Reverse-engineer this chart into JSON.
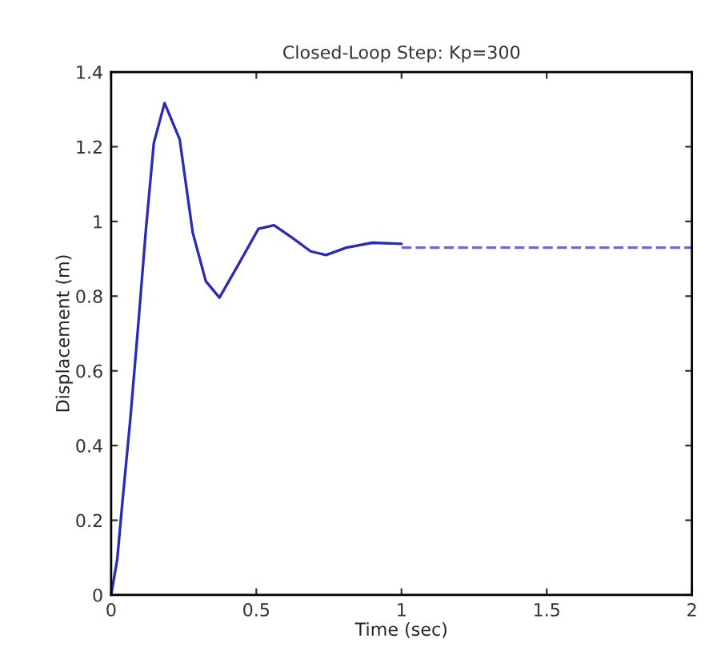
{
  "chart_data": {
    "type": "line",
    "title": "Closed-Loop Step: Kp=300",
    "xlabel": "Time (sec)",
    "ylabel": "Displacement (m)",
    "xlim": [
      0,
      2
    ],
    "xticks": [
      0,
      0.5,
      1,
      1.5,
      2
    ],
    "ylim": [
      0,
      1.4
    ],
    "yticks": [
      0,
      0.2,
      0.4,
      0.6,
      0.8,
      1,
      1.2,
      1.4
    ],
    "grid": false,
    "series": [
      {
        "color": "#2b2bb5",
        "line_style": "solid",
        "x": [
          0,
          0.021,
          0.039,
          0.066,
          0.093,
          0.12,
          0.147,
          0.184,
          0.236,
          0.281,
          0.326,
          0.373,
          0.435,
          0.507,
          0.561,
          0.624,
          0.687,
          0.74,
          0.81,
          0.9,
          1.0
        ],
        "values": [
          0,
          0.095,
          0.25,
          0.47,
          0.72,
          0.98,
          1.21,
          1.317,
          1.22,
          0.97,
          0.84,
          0.796,
          0.88,
          0.98,
          0.99,
          0.956,
          0.92,
          0.91,
          0.93,
          0.943,
          0.94
        ]
      },
      {
        "color": "#6b6bd0",
        "line_style": "dashed",
        "x": [
          1.0,
          2.0
        ],
        "values": [
          0.93,
          0.93
        ]
      }
    ]
  }
}
